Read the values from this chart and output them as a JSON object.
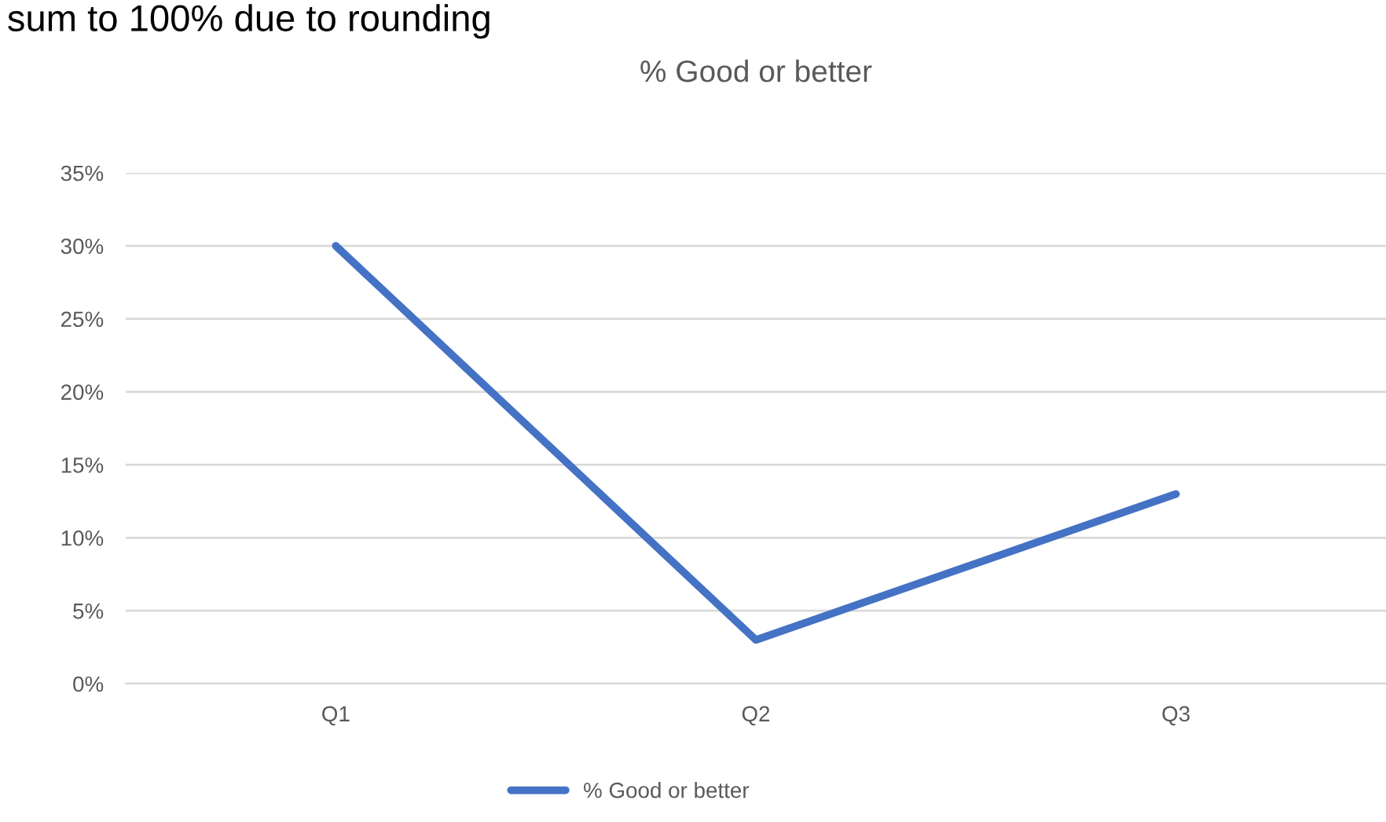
{
  "chart_data": {
    "type": "line",
    "title": "% Good or better",
    "annotations": [
      "sum to 100% due to rounding"
    ],
    "categories": [
      "Q1",
      "Q2",
      "Q3"
    ],
    "series": [
      {
        "name": "% Good or better",
        "color": "#4472c4",
        "values": [
          30,
          3,
          13
        ]
      }
    ],
    "ylim": [
      0,
      35
    ],
    "yticks": [
      {
        "value": 0,
        "label": "0%"
      },
      {
        "value": 5,
        "label": "5%"
      },
      {
        "value": 10,
        "label": "10%"
      },
      {
        "value": 15,
        "label": "15%"
      },
      {
        "value": 20,
        "label": "20%"
      },
      {
        "value": 25,
        "label": "25%"
      },
      {
        "value": 30,
        "label": "30%"
      },
      {
        "value": 35,
        "label": "35%"
      }
    ],
    "grid": "y",
    "legend": "bottom",
    "marker": "none",
    "line_style": "solid"
  }
}
